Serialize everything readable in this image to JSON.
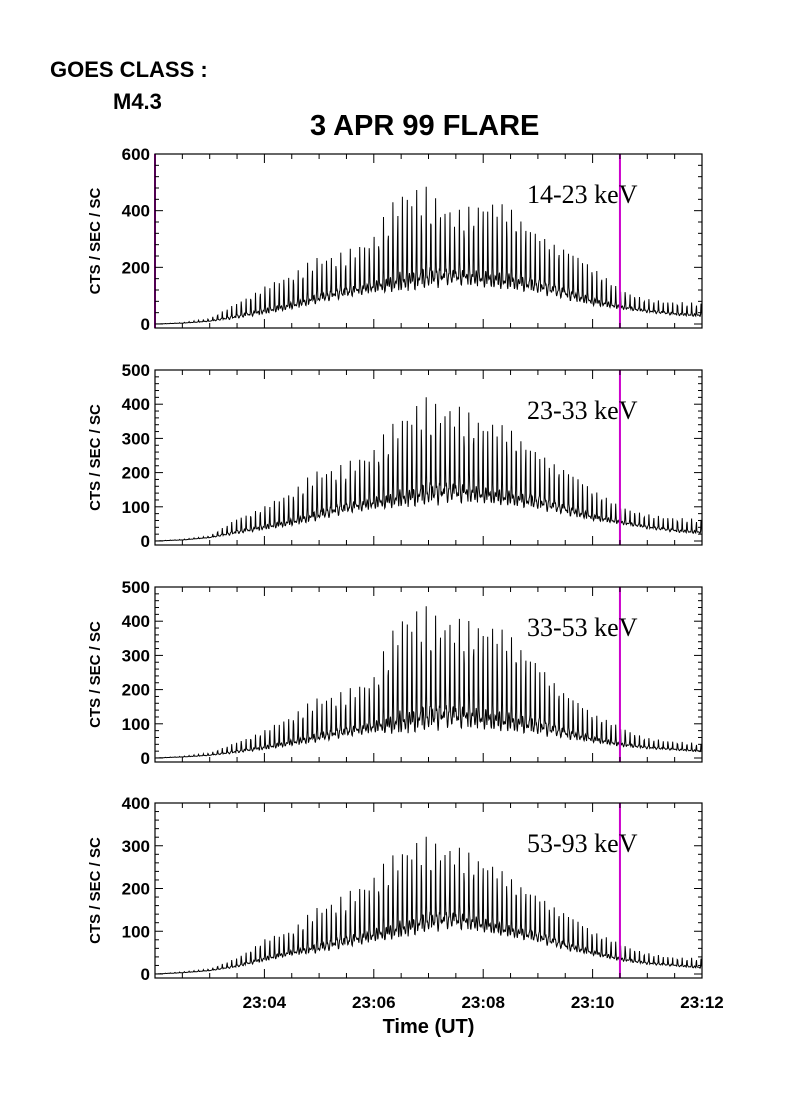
{
  "header": {
    "goes_label": "GOES CLASS :",
    "goes_class": "M4.3",
    "title": "3 APR 99 FLARE"
  },
  "colors": {
    "trace": "#000000",
    "marker": "#cc00cc",
    "axis": "#000000"
  },
  "chart_data": [
    {
      "type": "line",
      "band_label": "14-23 keV",
      "ylabel": "CTS / SEC / SC",
      "xlabel": "",
      "ylim": [
        0,
        600
      ],
      "yticks": [
        0,
        200,
        400,
        600
      ],
      "xlim": [
        "23:02:00",
        "23:12:00"
      ],
      "xticks": [],
      "markers_ut": [
        "23:02:00",
        "23:10:30"
      ],
      "series": [
        {
          "x": [
            "23:02:00",
            "23:02:30",
            "23:03:00",
            "23:03:30",
            "23:04:00",
            "23:04:30",
            "23:05:00",
            "23:05:30",
            "23:06:00",
            "23:06:30",
            "23:07:00",
            "23:07:30",
            "23:08:00",
            "23:08:30",
            "23:09:00",
            "23:09:30",
            "23:10:00",
            "23:10:30",
            "23:11:00",
            "23:11:30",
            "23:12:00"
          ],
          "baseline": [
            0,
            3,
            10,
            25,
            45,
            65,
            90,
            110,
            130,
            150,
            160,
            165,
            160,
            150,
            130,
            105,
            80,
            60,
            45,
            35,
            30
          ],
          "peak": [
            0,
            5,
            20,
            80,
            130,
            170,
            240,
            260,
            300,
            450,
            480,
            400,
            420,
            400,
            330,
            280,
            200,
            120,
            90,
            80,
            70
          ]
        }
      ]
    },
    {
      "type": "line",
      "band_label": "23-33 keV",
      "ylabel": "CTS / SEC / SC",
      "xlabel": "",
      "ylim": [
        0,
        500
      ],
      "yticks": [
        0,
        100,
        200,
        300,
        400,
        500
      ],
      "xlim": [
        "23:02:00",
        "23:12:00"
      ],
      "xticks": [],
      "markers_ut": [
        "23:10:30"
      ],
      "series": [
        {
          "x": [
            "23:02:00",
            "23:02:30",
            "23:03:00",
            "23:03:30",
            "23:04:00",
            "23:04:30",
            "23:05:00",
            "23:05:30",
            "23:06:00",
            "23:06:30",
            "23:07:00",
            "23:07:30",
            "23:08:00",
            "23:08:30",
            "23:09:00",
            "23:09:30",
            "23:10:00",
            "23:10:30",
            "23:11:00",
            "23:11:30",
            "23:12:00"
          ],
          "baseline": [
            0,
            3,
            10,
            25,
            40,
            55,
            75,
            95,
            110,
            125,
            135,
            140,
            135,
            125,
            110,
            90,
            70,
            55,
            40,
            30,
            25
          ],
          "peak": [
            0,
            5,
            15,
            70,
            100,
            140,
            210,
            230,
            260,
            350,
            420,
            400,
            340,
            320,
            270,
            220,
            150,
            100,
            80,
            70,
            60
          ]
        }
      ]
    },
    {
      "type": "line",
      "band_label": "33-53 keV",
      "ylabel": "CTS / SEC / SC",
      "xlabel": "",
      "ylim": [
        0,
        500
      ],
      "yticks": [
        0,
        100,
        200,
        300,
        400,
        500
      ],
      "xlim": [
        "23:02:00",
        "23:12:00"
      ],
      "xticks": [],
      "markers_ut": [
        "23:10:30"
      ],
      "series": [
        {
          "x": [
            "23:02:00",
            "23:02:30",
            "23:03:00",
            "23:03:30",
            "23:04:00",
            "23:04:30",
            "23:05:00",
            "23:05:30",
            "23:06:00",
            "23:06:30",
            "23:07:00",
            "23:07:30",
            "23:08:00",
            "23:08:30",
            "23:09:00",
            "23:09:30",
            "23:10:00",
            "23:10:30",
            "23:11:00",
            "23:11:30",
            "23:12:00"
          ],
          "baseline": [
            0,
            3,
            8,
            18,
            30,
            45,
            60,
            75,
            90,
            105,
            115,
            120,
            115,
            105,
            90,
            70,
            55,
            40,
            30,
            25,
            20
          ],
          "peak": [
            0,
            5,
            15,
            50,
            80,
            120,
            180,
            200,
            230,
            400,
            440,
            410,
            380,
            350,
            290,
            200,
            130,
            90,
            60,
            50,
            40
          ]
        }
      ]
    },
    {
      "type": "line",
      "band_label": "53-93 keV",
      "ylabel": "CTS / SEC / SC",
      "xlabel": "Time (UT)",
      "ylim": [
        0,
        400
      ],
      "yticks": [
        0,
        100,
        200,
        300,
        400
      ],
      "xlim": [
        "23:02:00",
        "23:12:00"
      ],
      "xticks": [
        "23:04",
        "23:06",
        "23:08",
        "23:10",
        "23:12"
      ],
      "markers_ut": [
        "23:10:30"
      ],
      "series": [
        {
          "x": [
            "23:02:00",
            "23:02:30",
            "23:03:00",
            "23:03:30",
            "23:04:00",
            "23:04:30",
            "23:05:00",
            "23:05:30",
            "23:06:00",
            "23:06:30",
            "23:07:00",
            "23:07:30",
            "23:08:00",
            "23:08:30",
            "23:09:00",
            "23:09:30",
            "23:10:00",
            "23:10:30",
            "23:11:00",
            "23:11:30",
            "23:12:00"
          ],
          "baseline": [
            0,
            3,
            8,
            18,
            35,
            50,
            60,
            75,
            90,
            105,
            120,
            125,
            115,
            100,
            85,
            65,
            50,
            35,
            25,
            20,
            15
          ],
          "peak": [
            0,
            5,
            12,
            40,
            80,
            100,
            160,
            190,
            220,
            280,
            320,
            300,
            260,
            220,
            190,
            150,
            100,
            70,
            50,
            40,
            35
          ]
        }
      ]
    }
  ]
}
